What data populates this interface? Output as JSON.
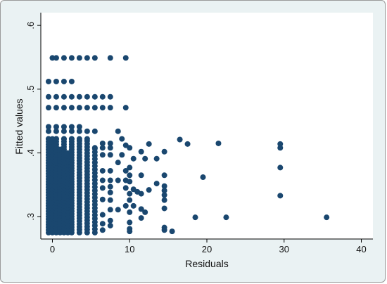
{
  "chart_data": {
    "type": "scatter",
    "title": "",
    "xlabel": "Residuals",
    "ylabel": "Fitted values",
    "xlim": [
      -1.5,
      41.5
    ],
    "ylim": [
      0.265,
      0.62
    ],
    "xticks": [
      0,
      10,
      20,
      30,
      40
    ],
    "xtick_labels": [
      "0",
      "10",
      "20",
      "30",
      "40"
    ],
    "yticks": [
      0.3,
      0.4,
      0.5,
      0.6
    ],
    "ytick_labels": [
      ".3",
      ".4",
      ".5",
      ".6"
    ],
    "grid": "none",
    "legend": "none",
    "marker_color": "#1a476f",
    "background_color": "#eaf2f3",
    "plot_background_color": "#ffffff",
    "series": [
      {
        "points": [
          [
            0.0,
            0.549
          ],
          [
            0.5,
            0.549
          ],
          [
            1.5,
            0.549
          ],
          [
            2.5,
            0.549
          ],
          [
            3.5,
            0.549
          ],
          [
            4.5,
            0.549
          ],
          [
            5.5,
            0.549
          ],
          [
            7.5,
            0.549
          ],
          [
            9.5,
            0.549
          ],
          [
            -0.5,
            0.512
          ],
          [
            0.5,
            0.512
          ],
          [
            1.5,
            0.512
          ],
          [
            2.5,
            0.512
          ],
          [
            -0.5,
            0.488
          ],
          [
            0.5,
            0.488
          ],
          [
            1.5,
            0.488
          ],
          [
            2.5,
            0.488
          ],
          [
            3.5,
            0.488
          ],
          [
            4.5,
            0.488
          ],
          [
            5.5,
            0.488
          ],
          [
            6.5,
            0.488
          ],
          [
            7.5,
            0.488
          ],
          [
            -0.5,
            0.471
          ],
          [
            0.5,
            0.471
          ],
          [
            1.5,
            0.471
          ],
          [
            2.5,
            0.471
          ],
          [
            3.5,
            0.471
          ],
          [
            4.5,
            0.471
          ],
          [
            5.5,
            0.471
          ],
          [
            6.5,
            0.471
          ],
          [
            7.5,
            0.471
          ],
          [
            9.5,
            0.471
          ],
          [
            -0.5,
            0.441
          ],
          [
            0.5,
            0.441
          ],
          [
            1.5,
            0.441
          ],
          [
            2.5,
            0.441
          ],
          [
            3.5,
            0.441
          ],
          [
            -0.5,
            0.434
          ],
          [
            0.5,
            0.434
          ],
          [
            1.5,
            0.434
          ],
          [
            2.5,
            0.434
          ],
          [
            3.5,
            0.434
          ],
          [
            4.5,
            0.434
          ],
          [
            5.5,
            0.434
          ],
          [
            8.5,
            0.434
          ],
          [
            -0.5,
            0.422
          ],
          [
            0.5,
            0.422
          ],
          [
            1.5,
            0.422
          ],
          [
            2.5,
            0.422
          ],
          [
            3.5,
            0.422
          ],
          [
            4.5,
            0.422
          ],
          [
            9.0,
            0.422
          ],
          [
            16.5,
            0.421
          ],
          [
            6.5,
            0.415
          ],
          [
            7.5,
            0.415
          ],
          [
            9.5,
            0.412
          ],
          [
            12.5,
            0.414
          ],
          [
            17.5,
            0.414
          ],
          [
            21.5,
            0.415
          ],
          [
            29.5,
            0.414
          ],
          [
            5.5,
            0.408
          ],
          [
            6.5,
            0.408
          ],
          [
            7.5,
            0.408
          ],
          [
            10.0,
            0.408
          ],
          [
            29.5,
            0.408
          ],
          [
            11.5,
            0.402
          ],
          [
            14.5,
            0.402
          ],
          [
            6.5,
            0.397
          ],
          [
            7.5,
            0.397
          ],
          [
            9.0,
            0.397
          ],
          [
            10.5,
            0.391
          ],
          [
            12.0,
            0.391
          ],
          [
            13.5,
            0.391
          ],
          [
            5.5,
            0.385
          ],
          [
            8.5,
            0.385
          ],
          [
            10.0,
            0.377
          ],
          [
            29.5,
            0.377
          ],
          [
            6.5,
            0.372
          ],
          [
            7.5,
            0.372
          ],
          [
            9.5,
            0.372
          ],
          [
            10.0,
            0.365
          ],
          [
            11.5,
            0.365
          ],
          [
            14.5,
            0.365
          ],
          [
            19.5,
            0.362
          ],
          [
            6.5,
            0.357
          ],
          [
            7.5,
            0.357
          ],
          [
            8.5,
            0.357
          ],
          [
            9.5,
            0.357
          ],
          [
            10.0,
            0.355
          ],
          [
            13.5,
            0.352
          ],
          [
            14.5,
            0.348
          ],
          [
            7.5,
            0.347
          ],
          [
            6.5,
            0.345
          ],
          [
            9.5,
            0.345
          ],
          [
            12.5,
            0.342
          ],
          [
            10.5,
            0.343
          ],
          [
            14.5,
            0.341
          ],
          [
            11.0,
            0.339
          ],
          [
            7.5,
            0.338
          ],
          [
            10.0,
            0.336
          ],
          [
            11.5,
            0.336
          ],
          [
            14.5,
            0.334
          ],
          [
            29.5,
            0.333
          ],
          [
            6.5,
            0.327
          ],
          [
            7.5,
            0.326
          ],
          [
            10.0,
            0.326
          ],
          [
            14.5,
            0.326
          ],
          [
            9.5,
            0.317
          ],
          [
            10.5,
            0.317
          ],
          [
            7.5,
            0.311
          ],
          [
            8.5,
            0.311
          ],
          [
            11.5,
            0.312
          ],
          [
            14.5,
            0.313
          ],
          [
            10.0,
            0.307
          ],
          [
            12.0,
            0.307
          ],
          [
            6.5,
            0.303
          ],
          [
            11.5,
            0.298
          ],
          [
            18.5,
            0.299
          ],
          [
            22.5,
            0.299
          ],
          [
            35.5,
            0.299
          ],
          [
            7.5,
            0.294
          ],
          [
            10.0,
            0.291
          ],
          [
            6.5,
            0.289
          ],
          [
            7.5,
            0.286
          ],
          [
            10.0,
            0.281
          ],
          [
            14.5,
            0.283
          ],
          [
            6.5,
            0.279
          ],
          [
            10.0,
            0.277
          ],
          [
            14.5,
            0.279
          ],
          [
            15.5,
            0.277
          ]
        ]
      }
    ],
    "dense_columns": [
      {
        "x": -0.5,
        "y_from": 0.275,
        "y_to": 0.422,
        "step": 0.0042
      },
      {
        "x": 0.0,
        "y_from": 0.275,
        "y_to": 0.422,
        "step": 0.0042
      },
      {
        "x": 0.5,
        "y_from": 0.275,
        "y_to": 0.422,
        "step": 0.0042
      },
      {
        "x": 1.0,
        "y_from": 0.275,
        "y_to": 0.408,
        "step": 0.0045
      },
      {
        "x": 1.5,
        "y_from": 0.275,
        "y_to": 0.422,
        "step": 0.0042
      },
      {
        "x": 2.0,
        "y_from": 0.275,
        "y_to": 0.402,
        "step": 0.0048
      },
      {
        "x": 2.5,
        "y_from": 0.275,
        "y_to": 0.422,
        "step": 0.0042
      },
      {
        "x": 3.5,
        "y_from": 0.275,
        "y_to": 0.422,
        "step": 0.0045
      },
      {
        "x": 4.5,
        "y_from": 0.275,
        "y_to": 0.422,
        "step": 0.0048
      },
      {
        "x": 5.5,
        "y_from": 0.275,
        "y_to": 0.408,
        "step": 0.0055
      }
    ]
  }
}
